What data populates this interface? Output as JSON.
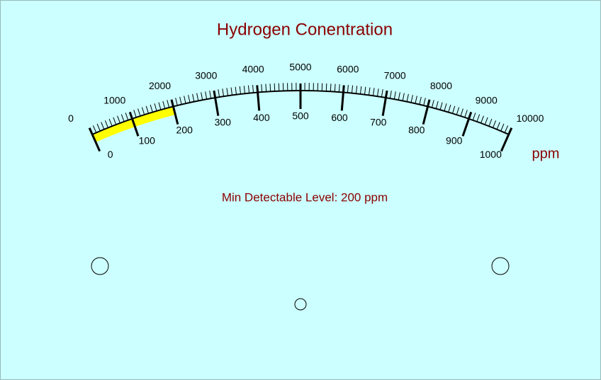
{
  "title": "Hydrogen Conentration",
  "unit": "ppm",
  "outer_scale": [
    "0",
    "1000",
    "2000",
    "3000",
    "4000",
    "5000",
    "6000",
    "7000",
    "8000",
    "9000",
    "10000"
  ],
  "inner_scale": [
    "0",
    "100",
    "200",
    "300",
    "400",
    "500",
    "600",
    "700",
    "800",
    "900",
    "1000"
  ],
  "note": "Min Detectable Level: 200 ppm"
}
